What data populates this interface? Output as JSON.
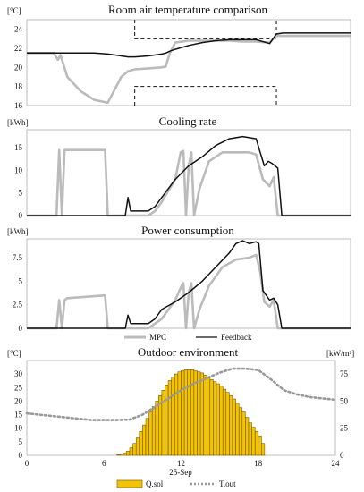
{
  "chart_data": [
    {
      "type": "line",
      "title": "Room air temperature comparison",
      "unit": "[°C]",
      "ylim": [
        16,
        25
      ],
      "yticks": [
        16,
        18,
        20,
        22,
        24
      ],
      "x_hours": [
        0,
        2,
        2.3,
        2.5,
        3,
        4,
        5,
        6,
        7,
        7.5,
        8,
        9,
        10,
        10.3,
        10.6,
        11,
        12,
        13,
        14,
        15,
        16,
        17,
        18,
        18.5,
        19,
        20,
        21,
        22,
        23,
        24
      ],
      "series": [
        {
          "name": "MPC",
          "color": "#bbbbbb",
          "values": [
            21.5,
            21.5,
            20.8,
            21.3,
            19.0,
            17.5,
            16.6,
            16.3,
            19.0,
            19.6,
            19.8,
            19.9,
            20.0,
            20.1,
            21.5,
            22.6,
            22.8,
            22.8,
            22.8,
            22.8,
            22.7,
            22.7,
            22.6,
            23.3,
            23.3,
            23.3,
            23.3,
            23.3,
            23.3,
            23.3
          ]
        },
        {
          "name": "Feedback",
          "color": "#111111",
          "values": [
            21.5,
            21.5,
            21.5,
            21.5,
            21.5,
            21.5,
            21.5,
            21.4,
            21.2,
            21.1,
            21.1,
            21.2,
            21.4,
            21.5,
            21.7,
            21.9,
            22.3,
            22.6,
            22.8,
            22.9,
            22.9,
            22.9,
            22.5,
            23.5,
            23.6,
            23.6,
            23.6,
            23.6,
            23.6,
            23.6
          ]
        }
      ],
      "setpoint_band": {
        "x_start": 8,
        "x_end": 18.5,
        "upper": 23.0,
        "upper_edge": 25,
        "lower": 18.0,
        "lower_edge": 16
      }
    },
    {
      "type": "line",
      "title": "Cooling rate",
      "unit": "[kWh]",
      "ylim": [
        0,
        19
      ],
      "yticks": [
        0,
        5,
        10,
        15
      ],
      "series": [
        {
          "name": "MPC",
          "color": "#bbbbbb",
          "x": [
            0,
            2.2,
            2.4,
            2.6,
            2.8,
            3.0,
            5.8,
            6.0,
            7.0,
            9.0,
            9.5,
            10.0,
            11.0,
            11.4,
            11.6,
            11.8,
            12.0,
            12.2,
            12.4,
            12.8,
            13.5,
            14.5,
            15.5,
            16.5,
            17.0,
            17.5,
            18.0,
            18.3,
            18.6,
            24
          ],
          "values": [
            0,
            0,
            14.5,
            0,
            14.5,
            14.5,
            14.5,
            0,
            0,
            0,
            1.0,
            3.0,
            8.0,
            14.0,
            14.3,
            0,
            11.0,
            14.0,
            0,
            6.0,
            12.0,
            14.0,
            14.0,
            14.0,
            13.5,
            8.0,
            6.5,
            8.5,
            0,
            0
          ]
        },
        {
          "name": "Feedback",
          "color": "#111111",
          "x": [
            0,
            7.3,
            7.5,
            7.7,
            8,
            9,
            9.5,
            10,
            11,
            12,
            13,
            14,
            15,
            16,
            17,
            17.3,
            17.6,
            17.9,
            18.2,
            18.6,
            18.9,
            24
          ],
          "values": [
            0,
            0,
            4.0,
            1.0,
            1.0,
            1.0,
            2.0,
            4.0,
            8.0,
            11.0,
            13.0,
            15.5,
            17.0,
            17.5,
            17.0,
            14.0,
            11.0,
            12.0,
            11.5,
            10.5,
            0,
            0
          ]
        }
      ]
    },
    {
      "type": "line",
      "title": "Power consumption",
      "unit": "[kWh]",
      "ylim": [
        0,
        9.5
      ],
      "yticks": [
        0,
        2.5,
        5,
        7.5
      ],
      "yticklabels": [
        "0",
        "2.5",
        "5",
        "7.5"
      ],
      "series": [
        {
          "name": "MPC",
          "color": "#bbbbbb",
          "x": [
            0,
            2.2,
            2.4,
            2.6,
            2.8,
            3.0,
            5.8,
            6.0,
            7.0,
            9.0,
            9.5,
            10.0,
            11.0,
            11.5,
            11.6,
            11.8,
            12.0,
            12.2,
            12.4,
            12.8,
            13.5,
            14.5,
            15.5,
            16.5,
            17.0,
            17.3,
            17.6,
            18.0,
            18.3,
            18.6,
            24
          ],
          "values": [
            0,
            0,
            3.0,
            0,
            3.0,
            3.2,
            3.5,
            0,
            0,
            0,
            0.5,
            1.0,
            3.0,
            4.6,
            4.8,
            0,
            3.8,
            4.8,
            0,
            2.0,
            4.5,
            6.5,
            7.3,
            7.5,
            7.8,
            6.0,
            2.8,
            2.3,
            3.0,
            0,
            0
          ]
        },
        {
          "name": "Feedback",
          "color": "#111111",
          "x": [
            0,
            7.3,
            7.5,
            7.7,
            8,
            9,
            9.5,
            10,
            11,
            12,
            13,
            14,
            15,
            15.5,
            16,
            16.5,
            17,
            17.2,
            17.5,
            18,
            18.3,
            18.6,
            18.9,
            24
          ],
          "values": [
            0,
            0,
            1.4,
            0.5,
            0.5,
            0.5,
            1.0,
            2.0,
            2.8,
            3.8,
            5.0,
            6.5,
            8.0,
            9.0,
            9.3,
            9.0,
            9.2,
            9.0,
            4.0,
            3.0,
            3.2,
            2.5,
            0,
            0
          ]
        }
      ],
      "legend": {
        "position": "bottom-center",
        "entries": [
          "MPC",
          "Feedback"
        ]
      }
    },
    {
      "type": "bar+line",
      "title": "Outdoor environment",
      "unit_left": "[°C]",
      "unit_right": "[kW/m²]",
      "xlabel": "25-Sep",
      "xlim": [
        0,
        24
      ],
      "xticks": [
        0,
        6,
        12,
        18,
        24
      ],
      "ylim_left": [
        0,
        35
      ],
      "yticks_left": [
        0,
        5,
        10,
        15,
        20,
        25,
        30
      ],
      "ylim_right": [
        0,
        87.5
      ],
      "yticks_right": [
        0,
        25,
        50,
        75
      ],
      "bars": {
        "name": "Q.sol",
        "color": "#f5c400",
        "axis": "right",
        "width_h": 0.25,
        "x_start": 7.0,
        "values": [
          0.5,
          1,
          2,
          4,
          7,
          11,
          16,
          22,
          28,
          34,
          40,
          45,
          50,
          55,
          60,
          65,
          69,
          72,
          75,
          77,
          78,
          79,
          79,
          79,
          78,
          77,
          76,
          74,
          72,
          70,
          68,
          66,
          64,
          61,
          58,
          55,
          52,
          48,
          44,
          40,
          35,
          30,
          26,
          22,
          18,
          11
        ]
      },
      "series": [
        {
          "name": "T.out",
          "color": "#999999",
          "axis": "left",
          "x": [
            0,
            1,
            2,
            3,
            4,
            5,
            6,
            7,
            8,
            9,
            10,
            11,
            12,
            13,
            14,
            15,
            16,
            17,
            18,
            19,
            20,
            21,
            22,
            23,
            24
          ],
          "values": [
            15.5,
            15,
            14.5,
            14,
            13.5,
            13,
            13,
            13,
            13.2,
            15,
            18,
            21,
            24,
            26.5,
            28.5,
            30.5,
            32,
            32,
            31.5,
            28,
            24,
            22.5,
            21.5,
            21,
            20.5
          ]
        }
      ],
      "legend": {
        "position": "bottom-center",
        "entries": [
          "Q.sol",
          "T.out"
        ]
      }
    }
  ]
}
